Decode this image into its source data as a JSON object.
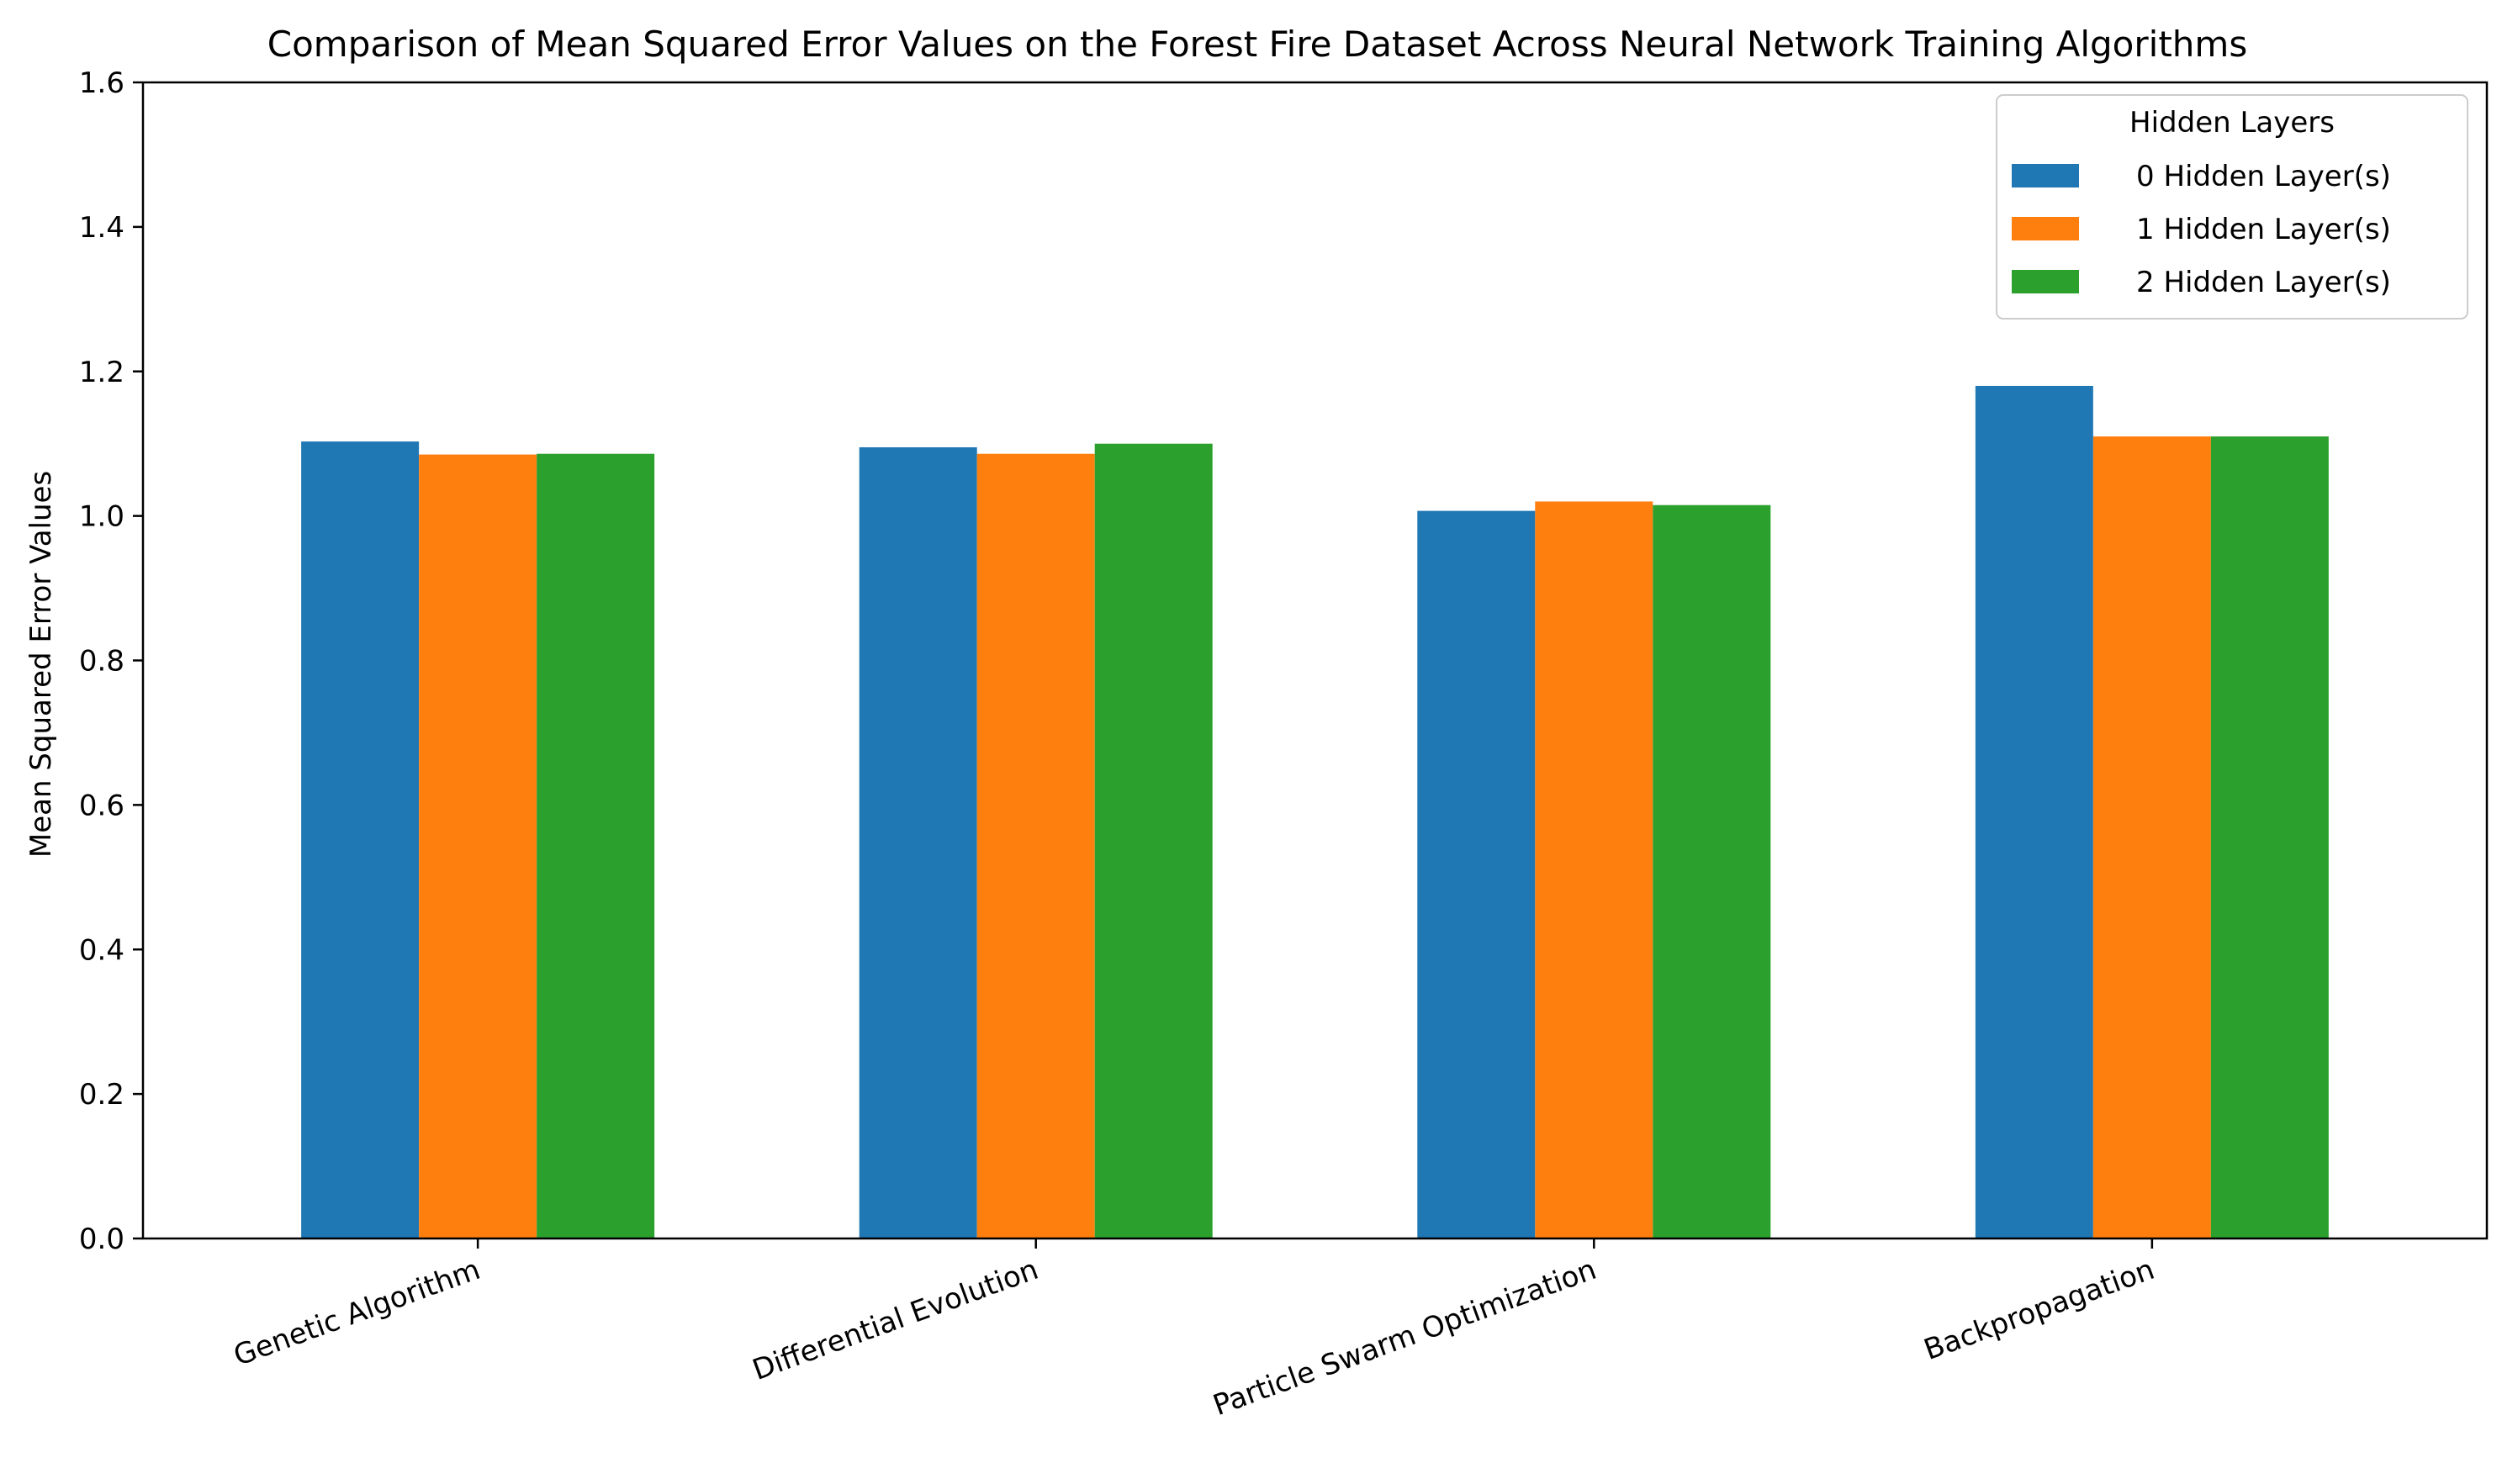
{
  "chart_data": {
    "type": "bar",
    "title": "Comparison of Mean Squared Error Values on the Forest Fire Dataset Across Neural Network Training Algorithms",
    "xlabel": "",
    "ylabel": "Mean Squared Error Values",
    "categories": [
      "Genetic Algorithm",
      "Differential Evolution",
      "Particle Swarm Optimization",
      "Backpropagation"
    ],
    "series": [
      {
        "name": "0 Hidden Layer(s)",
        "color": "#1f77b4",
        "values": [
          1.103,
          1.095,
          1.007,
          1.18
        ]
      },
      {
        "name": "1 Hidden Layer(s)",
        "color": "#ff7f0e",
        "values": [
          1.085,
          1.086,
          1.02,
          1.11
        ]
      },
      {
        "name": "2 Hidden Layer(s)",
        "color": "#2ca02c",
        "values": [
          1.086,
          1.1,
          1.015,
          1.11
        ]
      }
    ],
    "ylim": [
      0,
      1.6
    ],
    "yticks": [
      "0.0",
      "0.2",
      "0.4",
      "0.6",
      "0.8",
      "1.0",
      "1.2",
      "1.4",
      "1.6"
    ],
    "legend": {
      "title": "Hidden Layers",
      "placement": "top-right"
    },
    "grid": false,
    "xtick_rotation": "rotated"
  }
}
